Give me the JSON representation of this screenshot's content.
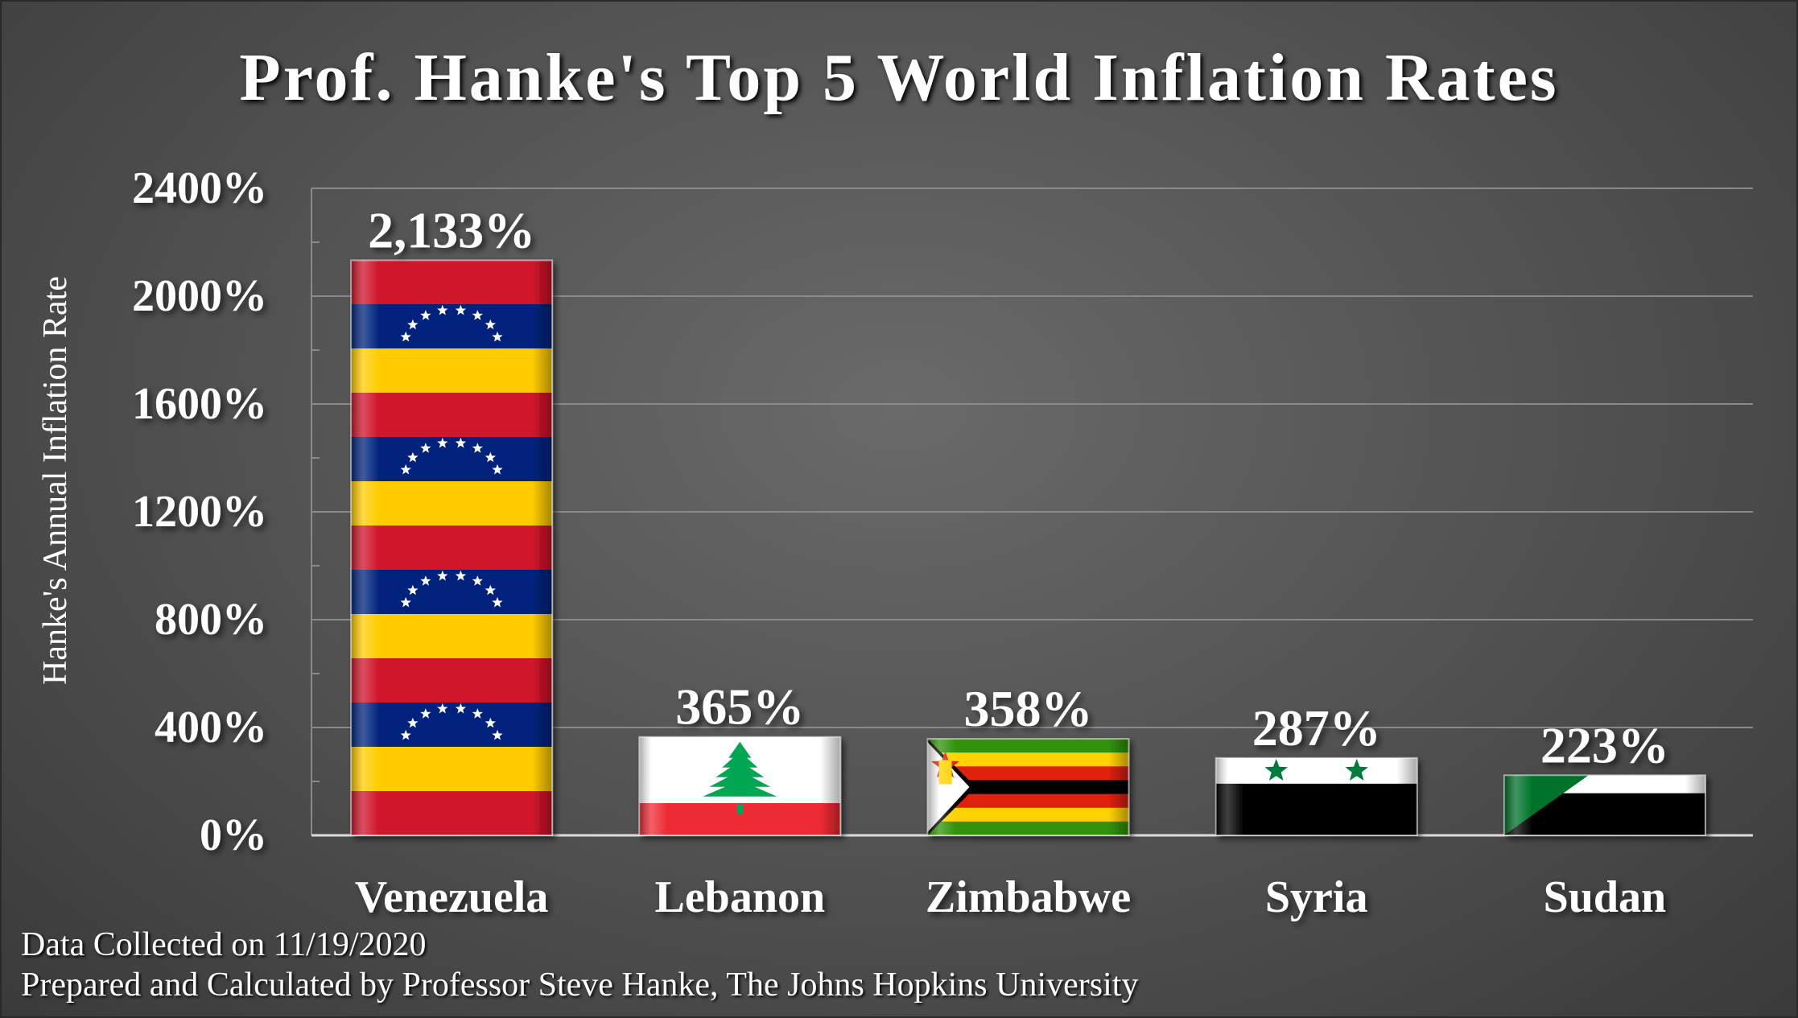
{
  "chart_data": {
    "type": "bar",
    "title": "Prof. Hanke's Top 5 World Inflation Rates",
    "ylabel": "Hanke's Annual Inflation Rate",
    "xlabel": "",
    "categories": [
      "Venezuela",
      "Lebanon",
      "Zimbabwe",
      "Syria",
      "Sudan"
    ],
    "values": [
      2133,
      365,
      358,
      287,
      223
    ],
    "data_labels": [
      "2,133%",
      "365%",
      "358%",
      "287%",
      "223%"
    ],
    "ylim": [
      0,
      2400
    ],
    "yticks": [
      0,
      400,
      800,
      1200,
      1600,
      2000,
      2400
    ],
    "ytick_labels": [
      "0%",
      "400%",
      "800%",
      "1200%",
      "1600%",
      "2000%",
      "2400%"
    ],
    "grid": true,
    "bar_fill": "national flags"
  },
  "footer": {
    "date": "Data Collected on 11/19/2020",
    "credit": "Prepared and Calculated by Professor Steve Hanke, The Johns Hopkins University"
  },
  "colors": {
    "background": "#555555",
    "text": "#ffffff",
    "grid": "#8a8a8a"
  }
}
